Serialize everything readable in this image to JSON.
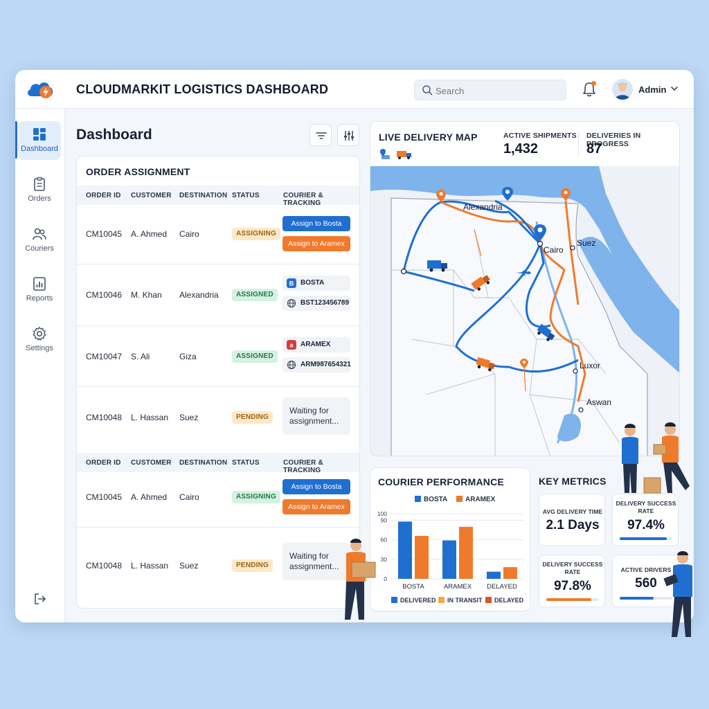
{
  "header": {
    "title": "CLOUDMARKIT LOGISTICS DASHBOARD",
    "search_placeholder": "Search",
    "user_name": "Admin"
  },
  "sidebar": {
    "items": [
      {
        "label": "Dashboard",
        "icon": "dashboard-icon",
        "active": true
      },
      {
        "label": "Orders",
        "icon": "clipboard-icon",
        "active": false
      },
      {
        "label": "Couriers",
        "icon": "users-icon",
        "active": false
      },
      {
        "label": "Reports",
        "icon": "report-icon",
        "active": false
      },
      {
        "label": "Settings",
        "icon": "gear-icon",
        "active": false
      }
    ],
    "logout_icon": "logout-icon"
  },
  "page": {
    "title": "Dashboard"
  },
  "orders": {
    "title": "ORDER ASSIGNMENT",
    "columns": [
      "ORDER ID",
      "CUSTOMER",
      "DESTINATION",
      "STATUS",
      "COURIER & TRACKING"
    ],
    "rows": [
      {
        "id": "CM10045",
        "customer": "A. Ahmed",
        "destination": "Cairo",
        "status": "ASSIGNING",
        "bosta_btn": "Assign to Bosta",
        "aramex_btn": "Assign to Aramex"
      },
      {
        "id": "CM10046",
        "customer": "M. Khan",
        "destination": "Alexandria",
        "status": "ASSIGNED",
        "courier": "BOSTA",
        "tracking": "BST123456789"
      },
      {
        "id": "CM10047",
        "customer": "S. Ali",
        "destination": "Giza",
        "status": "ASSIGNED",
        "courier": "ARAMEX",
        "tracking": "ARM987654321"
      },
      {
        "id": "CM10048",
        "customer": "L. Hassan",
        "destination": "Suez",
        "status": "PENDING",
        "waiting": "Waiting for assignment..."
      }
    ],
    "rows2": [
      {
        "id": "CM10045",
        "customer": "A. Ahmed",
        "destination": "Cairo",
        "status": "ASSIGNING",
        "bosta_btn": "Assign to Bosta",
        "aramex_btn": "Assign to Aramex"
      },
      {
        "id": "CM10048",
        "customer": "L. Hassan",
        "destination": "Suez",
        "status": "PENDING",
        "waiting": "Waiting for assignment..."
      }
    ]
  },
  "map": {
    "title": "LIVE DELIVERY MAP",
    "active_shipments_label": "ACTIVE SHIPMENTS",
    "active_shipments_value": "1,432",
    "deliveries_label": "DELIVERIES IN PROGRESS",
    "deliveries_value": "87",
    "cities": [
      "Alexandria",
      "Cairo",
      "Suez",
      "Luxor",
      "Aswan"
    ]
  },
  "performance": {
    "title": "COURIER PERFORMANCE",
    "legend_top": [
      "BOSTA",
      "ARAMEX"
    ],
    "legend_bottom": [
      "DELIVERED",
      "IN TRANSIT",
      "DELAYED"
    ]
  },
  "chart_data": {
    "type": "bar",
    "title": "COURIER PERFORMANCE",
    "categories": [
      "BOSTA",
      "ARAMEX",
      "DELAYED"
    ],
    "series": [
      {
        "name": "BOSTA",
        "values": [
          88,
          59,
          11
        ]
      },
      {
        "name": "ARAMEX",
        "values": [
          66,
          80,
          18
        ]
      }
    ],
    "yticks": [
      0,
      30,
      60,
      90,
      100
    ],
    "ylim": [
      0,
      100
    ],
    "colors": {
      "BOSTA": "#1f6fd1",
      "ARAMEX": "#f07a2c"
    },
    "legend": "top"
  },
  "metrics": {
    "title": "KEY METRICS",
    "items": [
      {
        "label": "AVG DELIVERY TIME",
        "value": "2.1 Days"
      },
      {
        "label": "DELIVERY SUCCESS RATE",
        "value": "97.4%",
        "progress": 0.9,
        "color": "#1f6fd1"
      },
      {
        "label": "DELIVERY SUCCESS RATE",
        "value": "97.8%",
        "progress": 0.85,
        "color": "#f07a2c"
      },
      {
        "label": "ACTIVE DRIVERS",
        "value": "560",
        "progress": 0.65,
        "color": "#1f6fd1"
      }
    ]
  },
  "colors": {
    "primary": "#1f6fd1",
    "accent": "#f07a2c",
    "success": "#1f7a48",
    "warning": "#9a6313"
  }
}
